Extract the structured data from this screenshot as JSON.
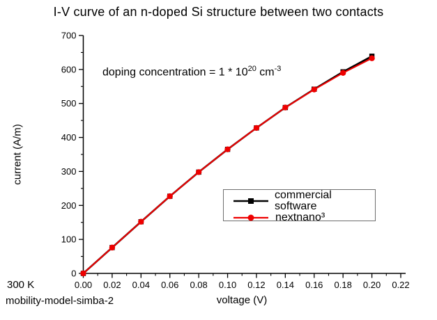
{
  "figure": {
    "title": "I-V curve of an n-doped Si structure between two contacts"
  },
  "annotation_display": {
    "prefix": "doping concentration = 1 * 10",
    "exp1": "20",
    "mid": " cm",
    "exp2": "-3"
  },
  "footnotes": {
    "temperature": "300 K",
    "model": "mobility-model-simba-2"
  },
  "chart_data": {
    "type": "line",
    "title": "I-V curve of an n-doped Si structure between two contacts",
    "xlabel": "voltage (V)",
    "ylabel": "current (A/m)",
    "xlim": [
      0.0,
      0.225
    ],
    "ylim": [
      0,
      700
    ],
    "grid": false,
    "legend_position": "inside right-center",
    "annotation": "doping concentration = 1 * 10^20 cm^-3",
    "x_ticks": [
      "0.00",
      "0.02",
      "0.04",
      "0.06",
      "0.08",
      "0.10",
      "0.12",
      "0.14",
      "0.16",
      "0.18",
      "0.20",
      "0.22"
    ],
    "y_ticks": [
      "0",
      "100",
      "200",
      "300",
      "400",
      "500",
      "600",
      "700"
    ],
    "x_minor_step": 0.01,
    "y_minor_step": 50,
    "axis_color": "#000000",
    "x": [
      0.0,
      0.02,
      0.04,
      0.06,
      0.08,
      0.1,
      0.12,
      0.14,
      0.16,
      0.18,
      0.2
    ],
    "series": [
      {
        "name": "commercial software",
        "color": "#000000",
        "marker": "square",
        "values": [
          0,
          76,
          152,
          227,
          298,
          365,
          428,
          488,
          542,
          593,
          639
        ]
      },
      {
        "name": "nextnano³",
        "color": "#ee0000",
        "marker": "circle",
        "values": [
          0,
          76,
          152,
          227,
          298,
          365,
          428,
          488,
          541,
          590,
          633
        ]
      }
    ]
  }
}
